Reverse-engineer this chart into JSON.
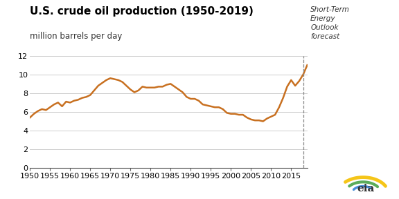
{
  "title": "U.S. crude oil production (1950-2019)",
  "subtitle": "million barrels per day",
  "forecast_label": "Short-Term\nEnergy\nOutlook\nforecast",
  "forecast_year": 2018,
  "line_color": "#C87020",
  "line_width": 1.8,
  "xlim": [
    1950,
    2019
  ],
  "ylim": [
    0,
    12
  ],
  "yticks": [
    0,
    2,
    4,
    6,
    8,
    10,
    12
  ],
  "xticks": [
    1950,
    1955,
    1960,
    1965,
    1970,
    1975,
    1980,
    1985,
    1990,
    1995,
    2000,
    2005,
    2010,
    2015
  ],
  "years": [
    1950,
    1951,
    1952,
    1953,
    1954,
    1955,
    1956,
    1957,
    1958,
    1959,
    1960,
    1961,
    1962,
    1963,
    1964,
    1965,
    1966,
    1967,
    1968,
    1969,
    1970,
    1971,
    1972,
    1973,
    1974,
    1975,
    1976,
    1977,
    1978,
    1979,
    1980,
    1981,
    1982,
    1983,
    1984,
    1985,
    1986,
    1987,
    1988,
    1989,
    1990,
    1991,
    1992,
    1993,
    1994,
    1995,
    1996,
    1997,
    1998,
    1999,
    2000,
    2001,
    2002,
    2003,
    2004,
    2005,
    2006,
    2007,
    2008,
    2009,
    2010,
    2011,
    2012,
    2013,
    2014,
    2015,
    2016,
    2017,
    2018,
    2019
  ],
  "values": [
    5.4,
    5.8,
    6.1,
    6.3,
    6.2,
    6.5,
    6.8,
    7.0,
    6.6,
    7.1,
    7.0,
    7.2,
    7.3,
    7.5,
    7.6,
    7.8,
    8.3,
    8.8,
    9.1,
    9.4,
    9.6,
    9.5,
    9.4,
    9.2,
    8.8,
    8.4,
    8.1,
    8.3,
    8.7,
    8.6,
    8.6,
    8.6,
    8.7,
    8.7,
    8.9,
    9.0,
    8.7,
    8.4,
    8.1,
    7.6,
    7.4,
    7.4,
    7.2,
    6.8,
    6.7,
    6.6,
    6.5,
    6.5,
    6.3,
    5.9,
    5.8,
    5.8,
    5.7,
    5.7,
    5.4,
    5.2,
    5.1,
    5.1,
    5.0,
    5.3,
    5.5,
    5.7,
    6.5,
    7.5,
    8.7,
    9.4,
    8.8,
    9.3,
    10.0,
    11.0
  ],
  "background_color": "#ffffff",
  "grid_color": "#cccccc",
  "title_fontsize": 11,
  "subtitle_fontsize": 8.5,
  "tick_fontsize": 8
}
